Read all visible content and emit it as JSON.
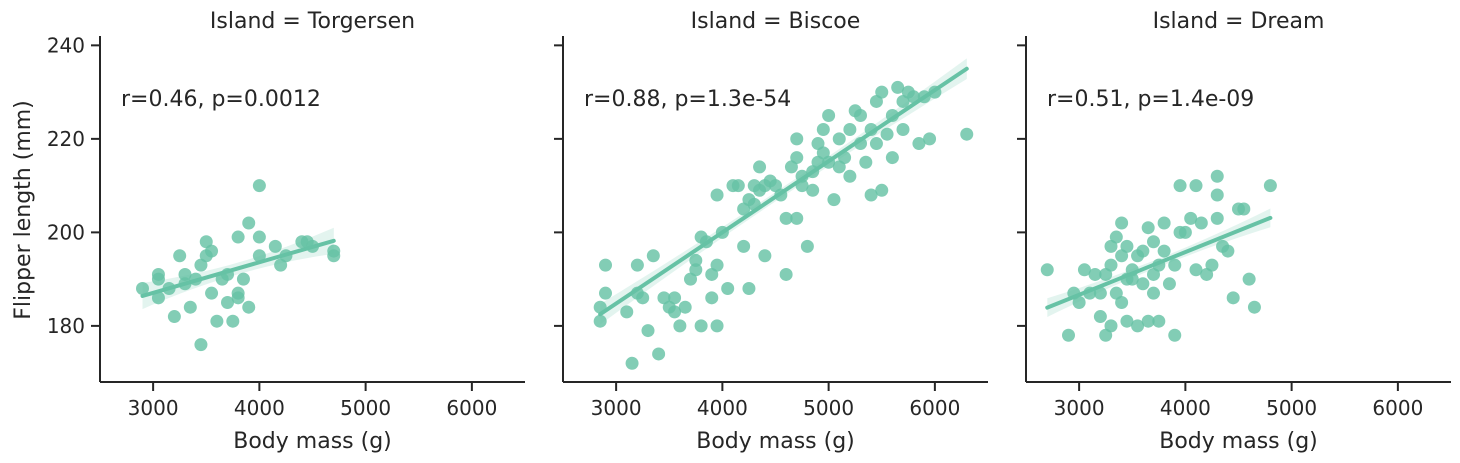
{
  "chart_data": {
    "type": "scatter",
    "color": "#66c2a5",
    "ylabel": "Flipper length (mm)",
    "xlabel": "Body mass (g)",
    "xlim": [
      2500,
      6500
    ],
    "ylim": [
      168,
      242
    ],
    "xticks": [
      "3000",
      "4000",
      "5000",
      "6000"
    ],
    "yticks": [
      "180",
      "200",
      "220",
      "240"
    ],
    "panels": [
      {
        "title": "Island = Torgersen",
        "annotation": "r=0.46, p=0.0012",
        "fit": {
          "x": [
            2900,
            4700
          ],
          "y": [
            186.4,
            198.2
          ]
        },
        "band_halfwidth": 2.8,
        "points": [
          [
            2900,
            188
          ],
          [
            3050,
            186
          ],
          [
            3050,
            190
          ],
          [
            3050,
            191
          ],
          [
            3150,
            188
          ],
          [
            3200,
            182
          ],
          [
            3250,
            195
          ],
          [
            3300,
            191
          ],
          [
            3300,
            189
          ],
          [
            3350,
            184
          ],
          [
            3400,
            190
          ],
          [
            3450,
            176
          ],
          [
            3450,
            193
          ],
          [
            3500,
            195
          ],
          [
            3500,
            198
          ],
          [
            3550,
            187
          ],
          [
            3550,
            196
          ],
          [
            3600,
            181
          ],
          [
            3650,
            190
          ],
          [
            3700,
            185
          ],
          [
            3700,
            191
          ],
          [
            3750,
            181
          ],
          [
            3800,
            187
          ],
          [
            3800,
            199
          ],
          [
            3800,
            186
          ],
          [
            3850,
            190
          ],
          [
            3900,
            202
          ],
          [
            3900,
            184
          ],
          [
            4000,
            199
          ],
          [
            4000,
            210
          ],
          [
            4000,
            195
          ],
          [
            4150,
            197
          ],
          [
            4200,
            193
          ],
          [
            4250,
            195
          ],
          [
            4400,
            198
          ],
          [
            4450,
            198
          ],
          [
            4500,
            197
          ],
          [
            4700,
            195
          ],
          [
            4700,
            196
          ]
        ]
      },
      {
        "title": "Island = Biscoe",
        "annotation": "r=0.88, p=1.3e-54",
        "fit": {
          "x": [
            2850,
            6300
          ],
          "y": [
            182.5,
            235.0
          ]
        },
        "band_halfwidth": 2.2,
        "points": [
          [
            2850,
            181
          ],
          [
            2850,
            184
          ],
          [
            2900,
            187
          ],
          [
            2900,
            193
          ],
          [
            3100,
            183
          ],
          [
            3150,
            172
          ],
          [
            3200,
            187
          ],
          [
            3200,
            193
          ],
          [
            3250,
            186
          ],
          [
            3300,
            179
          ],
          [
            3350,
            195
          ],
          [
            3400,
            174
          ],
          [
            3450,
            186
          ],
          [
            3500,
            184
          ],
          [
            3550,
            186
          ],
          [
            3550,
            183
          ],
          [
            3600,
            180
          ],
          [
            3650,
            184
          ],
          [
            3700,
            190
          ],
          [
            3750,
            192
          ],
          [
            3750,
            194
          ],
          [
            3800,
            199
          ],
          [
            3800,
            180
          ],
          [
            3850,
            198
          ],
          [
            3900,
            191
          ],
          [
            3900,
            186
          ],
          [
            3950,
            180
          ],
          [
            3950,
            193
          ],
          [
            3950,
            208
          ],
          [
            4000,
            200
          ],
          [
            4050,
            188
          ],
          [
            4100,
            210
          ],
          [
            4150,
            210
          ],
          [
            4200,
            205
          ],
          [
            4200,
            197
          ],
          [
            4250,
            188
          ],
          [
            4250,
            207
          ],
          [
            4300,
            210
          ],
          [
            4300,
            206
          ],
          [
            4350,
            214
          ],
          [
            4350,
            209
          ],
          [
            4400,
            195
          ],
          [
            4400,
            210
          ],
          [
            4450,
            211
          ],
          [
            4500,
            210
          ],
          [
            4550,
            208
          ],
          [
            4600,
            191
          ],
          [
            4600,
            203
          ],
          [
            4650,
            214
          ],
          [
            4700,
            216
          ],
          [
            4700,
            220
          ],
          [
            4700,
            203
          ],
          [
            4750,
            212
          ],
          [
            4750,
            210
          ],
          [
            4800,
            197
          ],
          [
            4850,
            213
          ],
          [
            4850,
            209
          ],
          [
            4900,
            215
          ],
          [
            4900,
            219
          ],
          [
            4950,
            222
          ],
          [
            4950,
            217
          ],
          [
            5000,
            225
          ],
          [
            5000,
            215
          ],
          [
            5050,
            207
          ],
          [
            5100,
            214
          ],
          [
            5100,
            220
          ],
          [
            5150,
            216
          ],
          [
            5200,
            212
          ],
          [
            5200,
            222
          ],
          [
            5250,
            226
          ],
          [
            5300,
            225
          ],
          [
            5300,
            219
          ],
          [
            5350,
            215
          ],
          [
            5400,
            208
          ],
          [
            5400,
            222
          ],
          [
            5450,
            228
          ],
          [
            5450,
            219
          ],
          [
            5500,
            230
          ],
          [
            5500,
            209
          ],
          [
            5550,
            221
          ],
          [
            5600,
            225
          ],
          [
            5600,
            216
          ],
          [
            5650,
            231
          ],
          [
            5700,
            228
          ],
          [
            5700,
            222
          ],
          [
            5750,
            230
          ],
          [
            5800,
            229
          ],
          [
            5850,
            219
          ],
          [
            5900,
            229
          ],
          [
            5950,
            220
          ],
          [
            6000,
            230
          ],
          [
            6300,
            221
          ]
        ]
      },
      {
        "title": "Island = Dream",
        "annotation": "r=0.51, p=1.4e-09",
        "fit": {
          "x": [
            2700,
            4800
          ],
          "y": [
            183.9,
            203.1
          ]
        },
        "band_halfwidth": 2.0,
        "points": [
          [
            2700,
            192
          ],
          [
            2900,
            178
          ],
          [
            2950,
            187
          ],
          [
            3000,
            185
          ],
          [
            3050,
            192
          ],
          [
            3100,
            187
          ],
          [
            3150,
            191
          ],
          [
            3200,
            187
          ],
          [
            3200,
            182
          ],
          [
            3250,
            178
          ],
          [
            3250,
            191
          ],
          [
            3300,
            193
          ],
          [
            3300,
            197
          ],
          [
            3300,
            180
          ],
          [
            3350,
            199
          ],
          [
            3350,
            187
          ],
          [
            3400,
            195
          ],
          [
            3400,
            202
          ],
          [
            3400,
            185
          ],
          [
            3450,
            190
          ],
          [
            3450,
            181
          ],
          [
            3450,
            197
          ],
          [
            3500,
            190
          ],
          [
            3500,
            192
          ],
          [
            3550,
            195
          ],
          [
            3550,
            180
          ],
          [
            3600,
            196
          ],
          [
            3600,
            189
          ],
          [
            3650,
            181
          ],
          [
            3650,
            201
          ],
          [
            3700,
            198
          ],
          [
            3700,
            191
          ],
          [
            3700,
            187
          ],
          [
            3750,
            181
          ],
          [
            3750,
            193
          ],
          [
            3800,
            196
          ],
          [
            3800,
            202
          ],
          [
            3850,
            189
          ],
          [
            3900,
            178
          ],
          [
            3900,
            193
          ],
          [
            3950,
            210
          ],
          [
            3950,
            200
          ],
          [
            4000,
            200
          ],
          [
            4050,
            203
          ],
          [
            4100,
            210
          ],
          [
            4100,
            192
          ],
          [
            4150,
            202
          ],
          [
            4200,
            191
          ],
          [
            4250,
            193
          ],
          [
            4300,
            212
          ],
          [
            4300,
            208
          ],
          [
            4300,
            203
          ],
          [
            4350,
            197
          ],
          [
            4400,
            196
          ],
          [
            4450,
            186
          ],
          [
            4500,
            205
          ],
          [
            4550,
            205
          ],
          [
            4600,
            190
          ],
          [
            4650,
            184
          ],
          [
            4800,
            210
          ]
        ]
      }
    ]
  }
}
